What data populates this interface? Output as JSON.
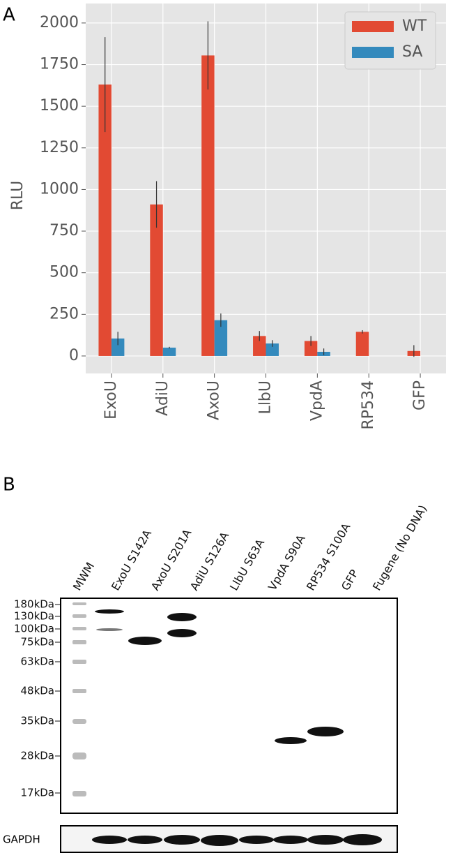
{
  "chart_data": {
    "type": "bar",
    "panel_label": "A",
    "y_label": "RLU",
    "categories": [
      "ExoU",
      "AdiU",
      "AxoU",
      "LlbU",
      "VpdA",
      "RP534",
      "GFP"
    ],
    "series": [
      {
        "name": "WT",
        "color": "#e24a33",
        "values": [
          1630,
          910,
          1805,
          120,
          90,
          145,
          30
        ],
        "errors": [
          285,
          140,
          205,
          30,
          30,
          10,
          35
        ]
      },
      {
        "name": "SA",
        "color": "#348abd",
        "values": [
          105,
          50,
          215,
          75,
          25,
          null,
          null
        ],
        "errors": [
          40,
          5,
          40,
          20,
          20,
          null,
          null
        ]
      }
    ],
    "ylim": [
      -105,
      2117
    ],
    "yticks": [
      0,
      250,
      500,
      750,
      1000,
      1250,
      1500,
      1750,
      2000
    ],
    "grid": true,
    "legend": "upper right"
  },
  "blot": {
    "panel_label": "B",
    "lanes": [
      "MWM",
      "ExoU S142A",
      "AxoU S201A",
      "AdiU S126A",
      "LlbU S63A",
      "VpdA S90A",
      "RP534 S100A",
      "GFP",
      "Fugene (No DNA)"
    ],
    "markers": [
      "180kDa",
      "130kDa",
      "100kDa",
      "75kDa",
      "63kDa",
      "48kDa",
      "35kDa",
      "28kDa",
      "17kDa"
    ],
    "loading_control": "GAPDH"
  }
}
